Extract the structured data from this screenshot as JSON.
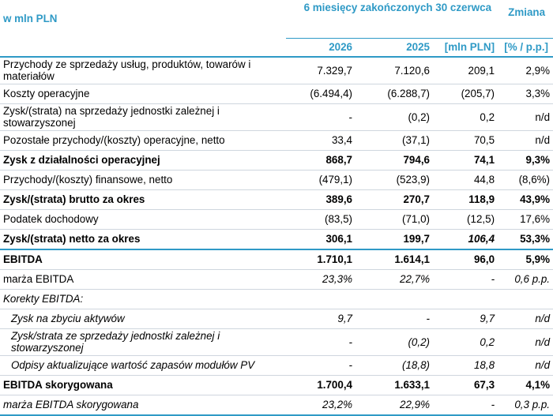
{
  "header": {
    "unit": "w mln PLN",
    "period": "6 miesięcy zakończonych 30 czerwca",
    "change": "Zmiana",
    "col_2026": "2026",
    "col_2025": "2025",
    "col_mln": "[mln PLN]",
    "col_pct": "[% / p.p.]"
  },
  "rows": [
    {
      "label": "Przychody ze sprzedaży usług, produktów, towarów i materiałów",
      "v2026": "7.329,7",
      "v2025": "7.120,6",
      "mln": "209,1",
      "pct": "2,9%"
    },
    {
      "label": "Koszty operacyjne",
      "v2026": "(6.494,4)",
      "v2025": "(6.288,7)",
      "mln": "(205,7)",
      "pct": "3,3%"
    },
    {
      "label": "Zysk/(strata) na sprzedaży jednostki zależnej i stowarzyszonej",
      "v2026": "-",
      "v2025": "(0,2)",
      "mln": "0,2",
      "pct": "n/d"
    },
    {
      "label": "Pozostałe przychody/(koszty) operacyjne, netto",
      "v2026": "33,4",
      "v2025": "(37,1)",
      "mln": "70,5",
      "pct": "n/d"
    },
    {
      "label": "Zysk z działalności operacyjnej",
      "v2026": "868,7",
      "v2025": "794,6",
      "mln": "74,1",
      "pct": "9,3%"
    },
    {
      "label": "Przychody/(koszty) finansowe, netto",
      "v2026": "(479,1)",
      "v2025": "(523,9)",
      "mln": "44,8",
      "pct": "(8,6%)"
    },
    {
      "label": "Zysk/(strata) brutto za okres",
      "v2026": "389,6",
      "v2025": "270,7",
      "mln": "118,9",
      "pct": "43,9%"
    },
    {
      "label": "Podatek dochodowy",
      "v2026": "(83,5)",
      "v2025": "(71,0)",
      "mln": "(12,5)",
      "pct": "17,6%"
    },
    {
      "label": "Zysk/(strata) netto za okres",
      "v2026": "306,1",
      "v2025": "199,7",
      "mln": "106,4",
      "pct": "53,3%"
    },
    {
      "label": "EBITDA",
      "v2026": "1.710,1",
      "v2025": "1.614,1",
      "mln": "96,0",
      "pct": "5,9%"
    },
    {
      "label": "marża EBITDA",
      "v2026": "23,3%",
      "v2025": "22,7%",
      "mln": "-",
      "pct": "0,6 p.p."
    },
    {
      "label": "Korekty EBITDA:"
    },
    {
      "label": "Zysk na zbyciu aktywów",
      "v2026": "9,7",
      "v2025": "-",
      "mln": "9,7",
      "pct": "n/d"
    },
    {
      "label": "Zysk/strata ze sprzedaży jednostki zależnej i stowarzyszonej",
      "v2026": "-",
      "v2025": "(0,2)",
      "mln": "0,2",
      "pct": "n/d"
    },
    {
      "label": "Odpisy aktualizujące wartość zapasów modułów PV",
      "v2026": "-",
      "v2025": "(18,8)",
      "mln": "18,8",
      "pct": "n/d"
    },
    {
      "label": "EBITDA skorygowana",
      "v2026": "1.700,4",
      "v2025": "1.633,1",
      "mln": "67,3",
      "pct": "4,1%"
    },
    {
      "label": "marża EBITDA skorygowana",
      "v2026": "23,2%",
      "v2025": "22,9%",
      "mln": "-",
      "pct": "0,3 p.p."
    }
  ]
}
